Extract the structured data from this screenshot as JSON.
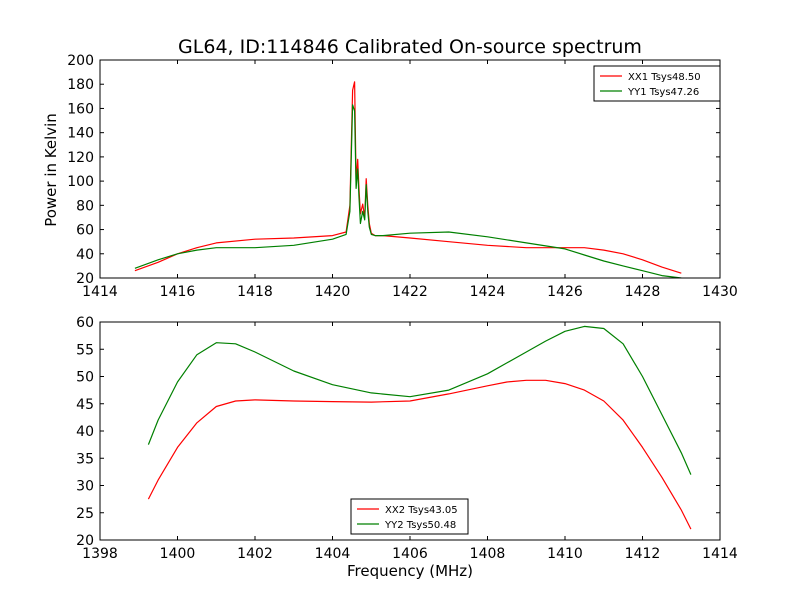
{
  "title": "GL64, ID:114846 Calibrated On-source spectrum",
  "chart_data": [
    {
      "type": "line",
      "ylabel": "Power in Kelvin",
      "xlim": [
        1414,
        1430
      ],
      "ylim": [
        20,
        200
      ],
      "xticks": [
        1414,
        1416,
        1418,
        1420,
        1422,
        1424,
        1426,
        1428,
        1430
      ],
      "yticks": [
        20,
        40,
        60,
        80,
        100,
        120,
        140,
        160,
        180,
        200
      ],
      "legend_position": "top-right",
      "series": [
        {
          "name": "XX1 Tsys48.50",
          "color": "#ff0000",
          "x": [
            1414.9,
            1415.5,
            1416.0,
            1416.5,
            1417.0,
            1418.0,
            1419.0,
            1420.0,
            1420.35,
            1420.45,
            1420.52,
            1420.57,
            1420.61,
            1420.65,
            1420.68,
            1420.72,
            1420.78,
            1420.83,
            1420.87,
            1420.91,
            1420.95,
            1421.0,
            1421.1,
            1421.3,
            1422.0,
            1423.0,
            1424.0,
            1425.0,
            1426.0,
            1426.5,
            1427.0,
            1427.5,
            1428.0,
            1428.5,
            1429.0
          ],
          "y": [
            26,
            33,
            40,
            45,
            49,
            52,
            53,
            55,
            58,
            80,
            175,
            182,
            100,
            118,
            95,
            73,
            81,
            70,
            102,
            80,
            65,
            57,
            55,
            55,
            53,
            50,
            47,
            45,
            45,
            45,
            43,
            40,
            35,
            29,
            24
          ]
        },
        {
          "name": "YY1 Tsys47.26",
          "color": "#008000",
          "x": [
            1414.9,
            1415.5,
            1416.0,
            1416.5,
            1417.0,
            1418.0,
            1419.0,
            1420.0,
            1420.35,
            1420.45,
            1420.52,
            1420.57,
            1420.61,
            1420.65,
            1420.68,
            1420.72,
            1420.78,
            1420.83,
            1420.87,
            1420.91,
            1420.95,
            1421.0,
            1421.1,
            1421.3,
            1422.0,
            1423.0,
            1424.0,
            1425.0,
            1426.0,
            1426.5,
            1427.0,
            1427.5,
            1428.0,
            1428.5,
            1429.0
          ],
          "y": [
            28,
            35,
            40,
            43,
            45,
            45,
            47,
            52,
            56,
            75,
            163,
            158,
            94,
            110,
            88,
            65,
            75,
            68,
            97,
            75,
            62,
            56,
            55,
            55,
            57,
            58,
            54,
            49,
            44,
            39,
            34,
            30,
            26,
            22,
            20
          ]
        }
      ]
    },
    {
      "type": "line",
      "xlabel": "Frequency (MHz)",
      "xlim": [
        1398,
        1414
      ],
      "ylim": [
        20,
        60
      ],
      "xticks": [
        1398,
        1400,
        1402,
        1404,
        1406,
        1408,
        1410,
        1412,
        1414
      ],
      "yticks": [
        20,
        25,
        30,
        35,
        40,
        45,
        50,
        55,
        60
      ],
      "legend_position": "bottom-center",
      "series": [
        {
          "name": "XX2 Tsys43.05",
          "color": "#ff0000",
          "x": [
            1399.25,
            1399.5,
            1400.0,
            1400.5,
            1401.0,
            1401.5,
            1402.0,
            1403.0,
            1404.0,
            1405.0,
            1406.0,
            1407.0,
            1408.0,
            1408.5,
            1409.0,
            1409.5,
            1410.0,
            1410.5,
            1411.0,
            1411.5,
            1412.0,
            1412.5,
            1413.0,
            1413.25
          ],
          "y": [
            27.5,
            31.0,
            37.0,
            41.5,
            44.5,
            45.5,
            45.7,
            45.5,
            45.4,
            45.3,
            45.5,
            46.8,
            48.3,
            49.0,
            49.3,
            49.3,
            48.7,
            47.5,
            45.5,
            42.0,
            37.0,
            31.5,
            25.5,
            22.0
          ]
        },
        {
          "name": "YY2 Tsys50.48",
          "color": "#008000",
          "x": [
            1399.25,
            1399.5,
            1400.0,
            1400.5,
            1401.0,
            1401.5,
            1402.0,
            1403.0,
            1404.0,
            1405.0,
            1406.0,
            1407.0,
            1408.0,
            1408.5,
            1409.0,
            1409.5,
            1410.0,
            1410.5,
            1411.0,
            1411.5,
            1412.0,
            1412.5,
            1413.0,
            1413.25
          ],
          "y": [
            37.5,
            42.0,
            49.0,
            54.0,
            56.2,
            56.0,
            54.5,
            51.0,
            48.5,
            47.0,
            46.3,
            47.5,
            50.5,
            52.5,
            54.5,
            56.5,
            58.3,
            59.2,
            58.8,
            56.0,
            50.0,
            43.0,
            36.0,
            32.0
          ]
        }
      ]
    }
  ]
}
